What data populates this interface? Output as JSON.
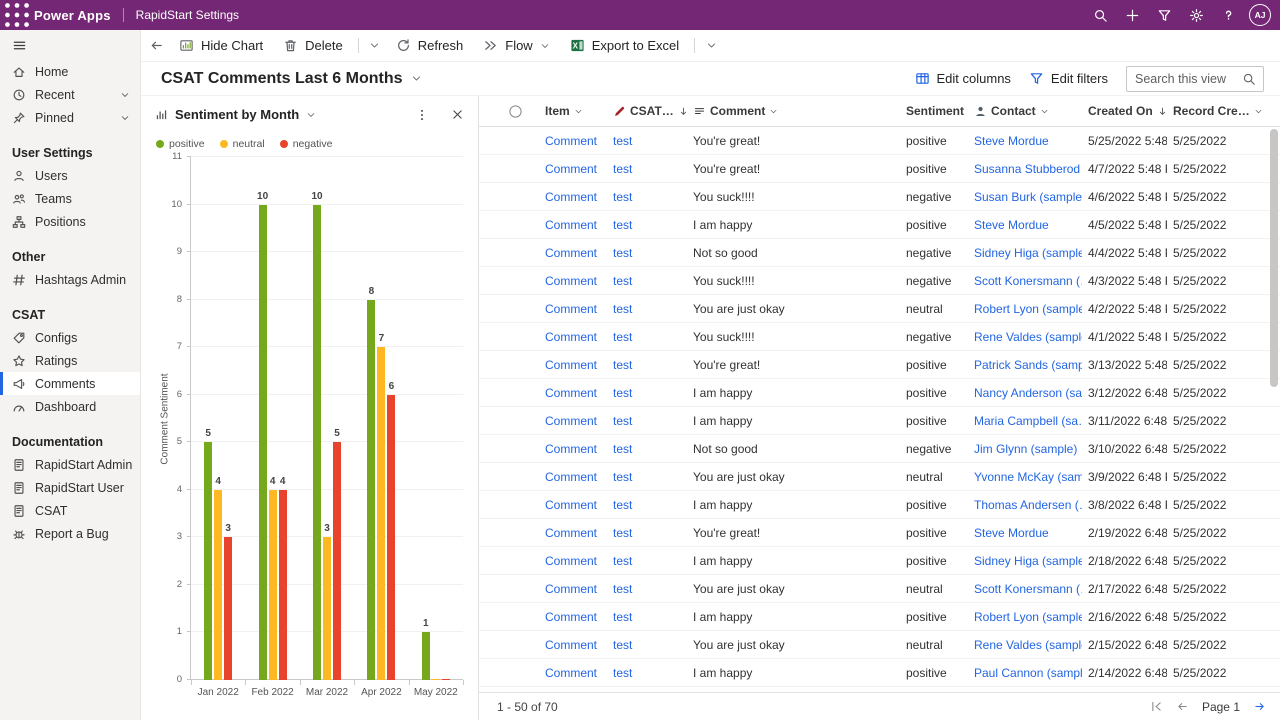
{
  "theme": {
    "brand_purple": "#742774",
    "accent_blue": "#2266E3"
  },
  "topbar": {
    "app_name": "Power Apps",
    "environment": "RapidStart Settings",
    "avatar_initials": "AJ",
    "icons": [
      "waffle",
      "search",
      "plus",
      "funnel",
      "gear",
      "help"
    ]
  },
  "sidebar": {
    "items": [
      {
        "type": "item",
        "icon": "home",
        "label": "Home"
      },
      {
        "type": "item",
        "icon": "clock",
        "label": "Recent",
        "chevron": true
      },
      {
        "type": "item",
        "icon": "pin",
        "label": "Pinned",
        "chevron": true
      },
      {
        "type": "header",
        "label": "User Settings"
      },
      {
        "type": "item",
        "icon": "person",
        "label": "Users"
      },
      {
        "type": "item",
        "icon": "people",
        "label": "Teams"
      },
      {
        "type": "item",
        "icon": "org-chart",
        "label": "Positions"
      },
      {
        "type": "header",
        "label": "Other"
      },
      {
        "type": "item",
        "icon": "hash",
        "label": "Hashtags Admin"
      },
      {
        "type": "header",
        "label": "CSAT"
      },
      {
        "type": "item",
        "icon": "tag",
        "label": "Configs"
      },
      {
        "type": "item",
        "icon": "star",
        "label": "Ratings"
      },
      {
        "type": "item",
        "icon": "megaphone",
        "label": "Comments",
        "selected": true
      },
      {
        "type": "item",
        "icon": "gauge",
        "label": "Dashboard"
      },
      {
        "type": "header",
        "label": "Documentation"
      },
      {
        "type": "item",
        "icon": "document",
        "label": "RapidStart Admin"
      },
      {
        "type": "item",
        "icon": "document",
        "label": "RapidStart User"
      },
      {
        "type": "item",
        "icon": "document",
        "label": "CSAT"
      },
      {
        "type": "item",
        "icon": "bug",
        "label": "Report a Bug"
      }
    ]
  },
  "command_bar": {
    "items": [
      {
        "type": "back",
        "icon": "back-arrow"
      },
      {
        "type": "button",
        "icon": "hide-chart",
        "label": "Hide Chart"
      },
      {
        "type": "button",
        "icon": "trash",
        "label": "Delete"
      },
      {
        "type": "divider"
      },
      {
        "type": "overflow"
      },
      {
        "type": "button",
        "icon": "refresh",
        "label": "Refresh"
      },
      {
        "type": "button",
        "icon": "flow",
        "label": "Flow",
        "chevron": true
      },
      {
        "type": "button",
        "icon": "excel",
        "label": "Export to Excel"
      },
      {
        "type": "divider"
      },
      {
        "type": "overflow"
      }
    ]
  },
  "view": {
    "title": "CSAT Comments Last 6 Months",
    "edit_columns_label": "Edit columns",
    "edit_filters_label": "Edit filters",
    "search_placeholder": "Search this view"
  },
  "chart_panel": {
    "title": "Sentiment by Month",
    "chart_data": {
      "type": "bar",
      "title": "Sentiment by Month",
      "categories": [
        "Jan 2022",
        "Feb 2022",
        "Mar 2022",
        "Apr 2022",
        "May 2022"
      ],
      "series": [
        {
          "name": "positive",
          "color": "#76A81E",
          "values": [
            5,
            10,
            10,
            8,
            1
          ]
        },
        {
          "name": "neutral",
          "color": "#FDB822",
          "values": [
            4,
            4,
            3,
            7,
            0
          ]
        },
        {
          "name": "negative",
          "color": "#E8432C",
          "values": [
            3,
            4,
            5,
            6,
            0
          ]
        }
      ],
      "xlabel": "",
      "ylabel": "Comment Sentiment",
      "ylim": [
        0,
        11
      ],
      "grid": true,
      "legend_position": "top"
    }
  },
  "grid": {
    "columns": [
      {
        "key": "item",
        "label": "Item",
        "chevron": true
      },
      {
        "key": "csat",
        "label": "CSAT…",
        "icon": "red-pencil",
        "sorted": true,
        "chevron": true
      },
      {
        "key": "comment",
        "label": "Comment",
        "icon": "text-lines",
        "chevron": true
      },
      {
        "key": "sentiment",
        "label": "Sentiment",
        "chevron": true
      },
      {
        "key": "contact",
        "label": "Contact",
        "icon": "person-filled",
        "chevron": true
      },
      {
        "key": "created_on",
        "label": "Created On",
        "sorted": true,
        "chevron": true
      },
      {
        "key": "record_created",
        "label": "Record Cre…",
        "chevron": true
      }
    ],
    "rows": [
      {
        "item": "Comment",
        "csat": "test",
        "comment": "You're great!",
        "sentiment": "positive",
        "contact": "Steve Mordue",
        "created_on": "5/25/2022 5:48 …",
        "record_created": "5/25/2022"
      },
      {
        "item": "Comment",
        "csat": "test",
        "comment": "You're great!",
        "sentiment": "positive",
        "contact": "Susanna Stubberod …",
        "created_on": "4/7/2022 5:48 P…",
        "record_created": "5/25/2022"
      },
      {
        "item": "Comment",
        "csat": "test",
        "comment": "You suck!!!!",
        "sentiment": "negative",
        "contact": "Susan Burk (sample)",
        "created_on": "4/6/2022 5:48 P…",
        "record_created": "5/25/2022"
      },
      {
        "item": "Comment",
        "csat": "test",
        "comment": "I am happy",
        "sentiment": "positive",
        "contact": "Steve Mordue",
        "created_on": "4/5/2022 5:48 P…",
        "record_created": "5/25/2022"
      },
      {
        "item": "Comment",
        "csat": "test",
        "comment": "Not so good",
        "sentiment": "negative",
        "contact": "Sidney Higa (sample)",
        "created_on": "4/4/2022 5:48 P…",
        "record_created": "5/25/2022"
      },
      {
        "item": "Comment",
        "csat": "test",
        "comment": "You suck!!!!",
        "sentiment": "negative",
        "contact": "Scott Konersmann (…",
        "created_on": "4/3/2022 5:48 P…",
        "record_created": "5/25/2022"
      },
      {
        "item": "Comment",
        "csat": "test",
        "comment": "You are just okay",
        "sentiment": "neutral",
        "contact": "Robert Lyon (sample)",
        "created_on": "4/2/2022 5:48 P…",
        "record_created": "5/25/2022"
      },
      {
        "item": "Comment",
        "csat": "test",
        "comment": "You suck!!!!",
        "sentiment": "negative",
        "contact": "Rene Valdes (sample)",
        "created_on": "4/1/2022 5:48 P…",
        "record_created": "5/25/2022"
      },
      {
        "item": "Comment",
        "csat": "test",
        "comment": "You're great!",
        "sentiment": "positive",
        "contact": "Patrick Sands (samp…",
        "created_on": "3/13/2022 5:48 …",
        "record_created": "5/25/2022"
      },
      {
        "item": "Comment",
        "csat": "test",
        "comment": "I am happy",
        "sentiment": "positive",
        "contact": "Nancy Anderson (sa…",
        "created_on": "3/12/2022 6:48 …",
        "record_created": "5/25/2022"
      },
      {
        "item": "Comment",
        "csat": "test",
        "comment": "I am happy",
        "sentiment": "positive",
        "contact": "Maria Campbell (sa…",
        "created_on": "3/11/2022 6:48 …",
        "record_created": "5/25/2022"
      },
      {
        "item": "Comment",
        "csat": "test",
        "comment": "Not so good",
        "sentiment": "negative",
        "contact": "Jim Glynn (sample)",
        "created_on": "3/10/2022 6:48 …",
        "record_created": "5/25/2022"
      },
      {
        "item": "Comment",
        "csat": "test",
        "comment": "You are just okay",
        "sentiment": "neutral",
        "contact": "Yvonne McKay (sam…",
        "created_on": "3/9/2022 6:48 P…",
        "record_created": "5/25/2022"
      },
      {
        "item": "Comment",
        "csat": "test",
        "comment": "I am happy",
        "sentiment": "positive",
        "contact": "Thomas Andersen (…",
        "created_on": "3/8/2022 6:48 P…",
        "record_created": "5/25/2022"
      },
      {
        "item": "Comment",
        "csat": "test",
        "comment": "You're great!",
        "sentiment": "positive",
        "contact": "Steve Mordue",
        "created_on": "2/19/2022 6:48 …",
        "record_created": "5/25/2022"
      },
      {
        "item": "Comment",
        "csat": "test",
        "comment": "I am happy",
        "sentiment": "positive",
        "contact": "Sidney Higa (sample)",
        "created_on": "2/18/2022 6:48 …",
        "record_created": "5/25/2022"
      },
      {
        "item": "Comment",
        "csat": "test",
        "comment": "You are just okay",
        "sentiment": "neutral",
        "contact": "Scott Konersmann (…",
        "created_on": "2/17/2022 6:48 …",
        "record_created": "5/25/2022"
      },
      {
        "item": "Comment",
        "csat": "test",
        "comment": "I am happy",
        "sentiment": "positive",
        "contact": "Robert Lyon (sample)",
        "created_on": "2/16/2022 6:48 …",
        "record_created": "5/25/2022"
      },
      {
        "item": "Comment",
        "csat": "test",
        "comment": "You are just okay",
        "sentiment": "neutral",
        "contact": "Rene Valdes (sample)",
        "created_on": "2/15/2022 6:48 …",
        "record_created": "5/25/2022"
      },
      {
        "item": "Comment",
        "csat": "test",
        "comment": "I am happy",
        "sentiment": "positive",
        "contact": "Paul Cannon (sample)",
        "created_on": "2/14/2022 6:48 …",
        "record_created": "5/25/2022"
      }
    ],
    "footer": {
      "count_label": "1 - 50 of 70",
      "page_label": "Page 1"
    }
  }
}
